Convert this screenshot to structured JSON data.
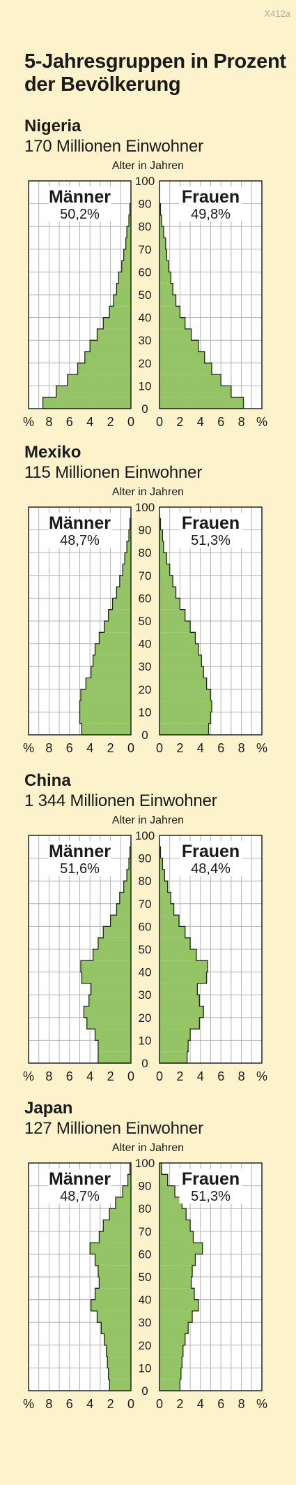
{
  "code": "X412a",
  "title_line1": "5-Jahresgruppen in Prozent",
  "title_line2": "der Bevölkerung",
  "colors": {
    "bars": "#95c467",
    "grid": "#b3b3b3",
    "frame": "#222222",
    "background": "#fcf3cc"
  },
  "chart_data": [
    {
      "type": "population-pyramid",
      "title": "Nigeria",
      "subtitle": "170 Millionen Einwohner",
      "ylabel": "Alter in Jahren",
      "xlabel": "%",
      "age_ticks": [
        "0",
        "10",
        "20",
        "30",
        "40",
        "50",
        "60",
        "70",
        "80",
        "90",
        "100"
      ],
      "x_ticks": [
        "8",
        "6",
        "4",
        "2",
        "0"
      ],
      "xlim": [
        0,
        10
      ],
      "ylim": [
        0,
        100
      ],
      "male": {
        "name": "Männer",
        "share": "50,2%"
      },
      "female": {
        "name": "Frauen",
        "share": "49,8%"
      },
      "age_groups": [
        "0-4",
        "5-9",
        "10-14",
        "15-19",
        "20-24",
        "25-29",
        "30-34",
        "35-39",
        "40-44",
        "45-49",
        "50-54",
        "55-59",
        "60-64",
        "65-69",
        "70-74",
        "75-79",
        "80-84",
        "85-89"
      ],
      "male_values": [
        8.6,
        7.3,
        6.2,
        5.2,
        4.5,
        4.0,
        3.3,
        2.7,
        2.1,
        1.7,
        1.4,
        1.2,
        0.9,
        0.7,
        0.5,
        0.4,
        0.2,
        0.1
      ],
      "female_values": [
        8.2,
        7.0,
        6.0,
        5.1,
        4.4,
        3.8,
        3.1,
        2.5,
        2.0,
        1.6,
        1.3,
        1.1,
        0.9,
        0.7,
        0.6,
        0.4,
        0.2,
        0.1
      ]
    },
    {
      "type": "population-pyramid",
      "title": "Mexiko",
      "subtitle": "115 Millionen Einwohner",
      "ylabel": "Alter in Jahren",
      "xlabel": "%",
      "age_ticks": [
        "0",
        "10",
        "20",
        "30",
        "40",
        "50",
        "60",
        "70",
        "80",
        "90",
        "100"
      ],
      "x_ticks": [
        "8",
        "6",
        "4",
        "2",
        "0"
      ],
      "xlim": [
        0,
        10
      ],
      "ylim": [
        0,
        100
      ],
      "male": {
        "name": "Männer",
        "share": "48,7%"
      },
      "female": {
        "name": "Frauen",
        "share": "51,3%"
      },
      "age_groups": [
        "0-4",
        "5-9",
        "10-14",
        "15-19",
        "20-24",
        "25-29",
        "30-34",
        "35-39",
        "40-44",
        "45-49",
        "50-54",
        "55-59",
        "60-64",
        "65-69",
        "70-74",
        "75-79",
        "80-84",
        "85-89",
        "90-94"
      ],
      "male_values": [
        4.8,
        5.0,
        5.0,
        4.9,
        4.4,
        3.9,
        3.7,
        3.5,
        3.1,
        2.6,
        2.2,
        1.8,
        1.4,
        1.1,
        0.8,
        0.6,
        0.4,
        0.2,
        0.1
      ],
      "female_values": [
        4.8,
        5.0,
        5.1,
        5.0,
        4.6,
        4.3,
        4.1,
        3.8,
        3.5,
        3.0,
        2.5,
        2.0,
        1.6,
        1.3,
        1.0,
        0.7,
        0.4,
        0.3,
        0.1
      ]
    },
    {
      "type": "population-pyramid",
      "title": "China",
      "subtitle": "1 344 Millionen Einwohner",
      "ylabel": "Alter in Jahren",
      "xlabel": "%",
      "age_ticks": [
        "0",
        "10",
        "20",
        "30",
        "40",
        "50",
        "60",
        "70",
        "80",
        "90",
        "100"
      ],
      "x_ticks": [
        "8",
        "6",
        "4",
        "2",
        "0"
      ],
      "xlim": [
        0,
        10
      ],
      "ylim": [
        0,
        100
      ],
      "male": {
        "name": "Männer",
        "share": "51,6%"
      },
      "female": {
        "name": "Frauen",
        "share": "48,4%"
      },
      "age_groups": [
        "0-4",
        "5-9",
        "10-14",
        "15-19",
        "20-24",
        "25-29",
        "30-34",
        "35-39",
        "40-44",
        "45-49",
        "50-54",
        "55-59",
        "60-64",
        "65-69",
        "70-74",
        "75-79",
        "80-84",
        "85-89",
        "90-94"
      ],
      "male_values": [
        3.2,
        3.2,
        3.5,
        4.3,
        4.6,
        4.1,
        3.9,
        4.8,
        4.9,
        3.7,
        3.2,
        2.7,
        2.0,
        1.4,
        1.1,
        0.7,
        0.4,
        0.2,
        0.1
      ],
      "female_values": [
        2.7,
        2.8,
        3.0,
        3.9,
        4.3,
        3.9,
        3.7,
        4.6,
        4.7,
        3.6,
        3.0,
        2.5,
        1.9,
        1.4,
        1.1,
        0.8,
        0.5,
        0.3,
        0.1
      ]
    },
    {
      "type": "population-pyramid",
      "title": "Japan",
      "subtitle": "127 Millionen Einwohner",
      "ylabel": "Alter in Jahren",
      "xlabel": "%",
      "age_ticks": [
        "0",
        "10",
        "20",
        "30",
        "40",
        "50",
        "60",
        "70",
        "80",
        "90",
        "100"
      ],
      "x_ticks": [
        "8",
        "6",
        "4",
        "2",
        "0"
      ],
      "xlim": [
        0,
        10
      ],
      "ylim": [
        0,
        100
      ],
      "male": {
        "name": "Männer",
        "share": "48,7%"
      },
      "female": {
        "name": "Frauen",
        "share": "51,3%"
      },
      "age_groups": [
        "0-4",
        "5-9",
        "10-14",
        "15-19",
        "20-24",
        "25-29",
        "30-34",
        "35-39",
        "40-44",
        "45-49",
        "50-54",
        "55-59",
        "60-64",
        "65-69",
        "70-74",
        "75-79",
        "80-84",
        "85-89",
        "90-94",
        "95-99"
      ],
      "male_values": [
        2.1,
        2.2,
        2.3,
        2.4,
        2.6,
        2.9,
        3.3,
        3.9,
        3.5,
        3.1,
        3.2,
        3.5,
        4.0,
        3.1,
        2.7,
        2.1,
        1.5,
        0.8,
        0.3,
        0.1
      ],
      "female_values": [
        2.0,
        2.1,
        2.2,
        2.3,
        2.5,
        2.8,
        3.2,
        3.8,
        3.4,
        3.1,
        3.2,
        3.5,
        4.2,
        3.3,
        3.0,
        2.6,
        2.2,
        1.5,
        0.8,
        0.2
      ]
    }
  ]
}
